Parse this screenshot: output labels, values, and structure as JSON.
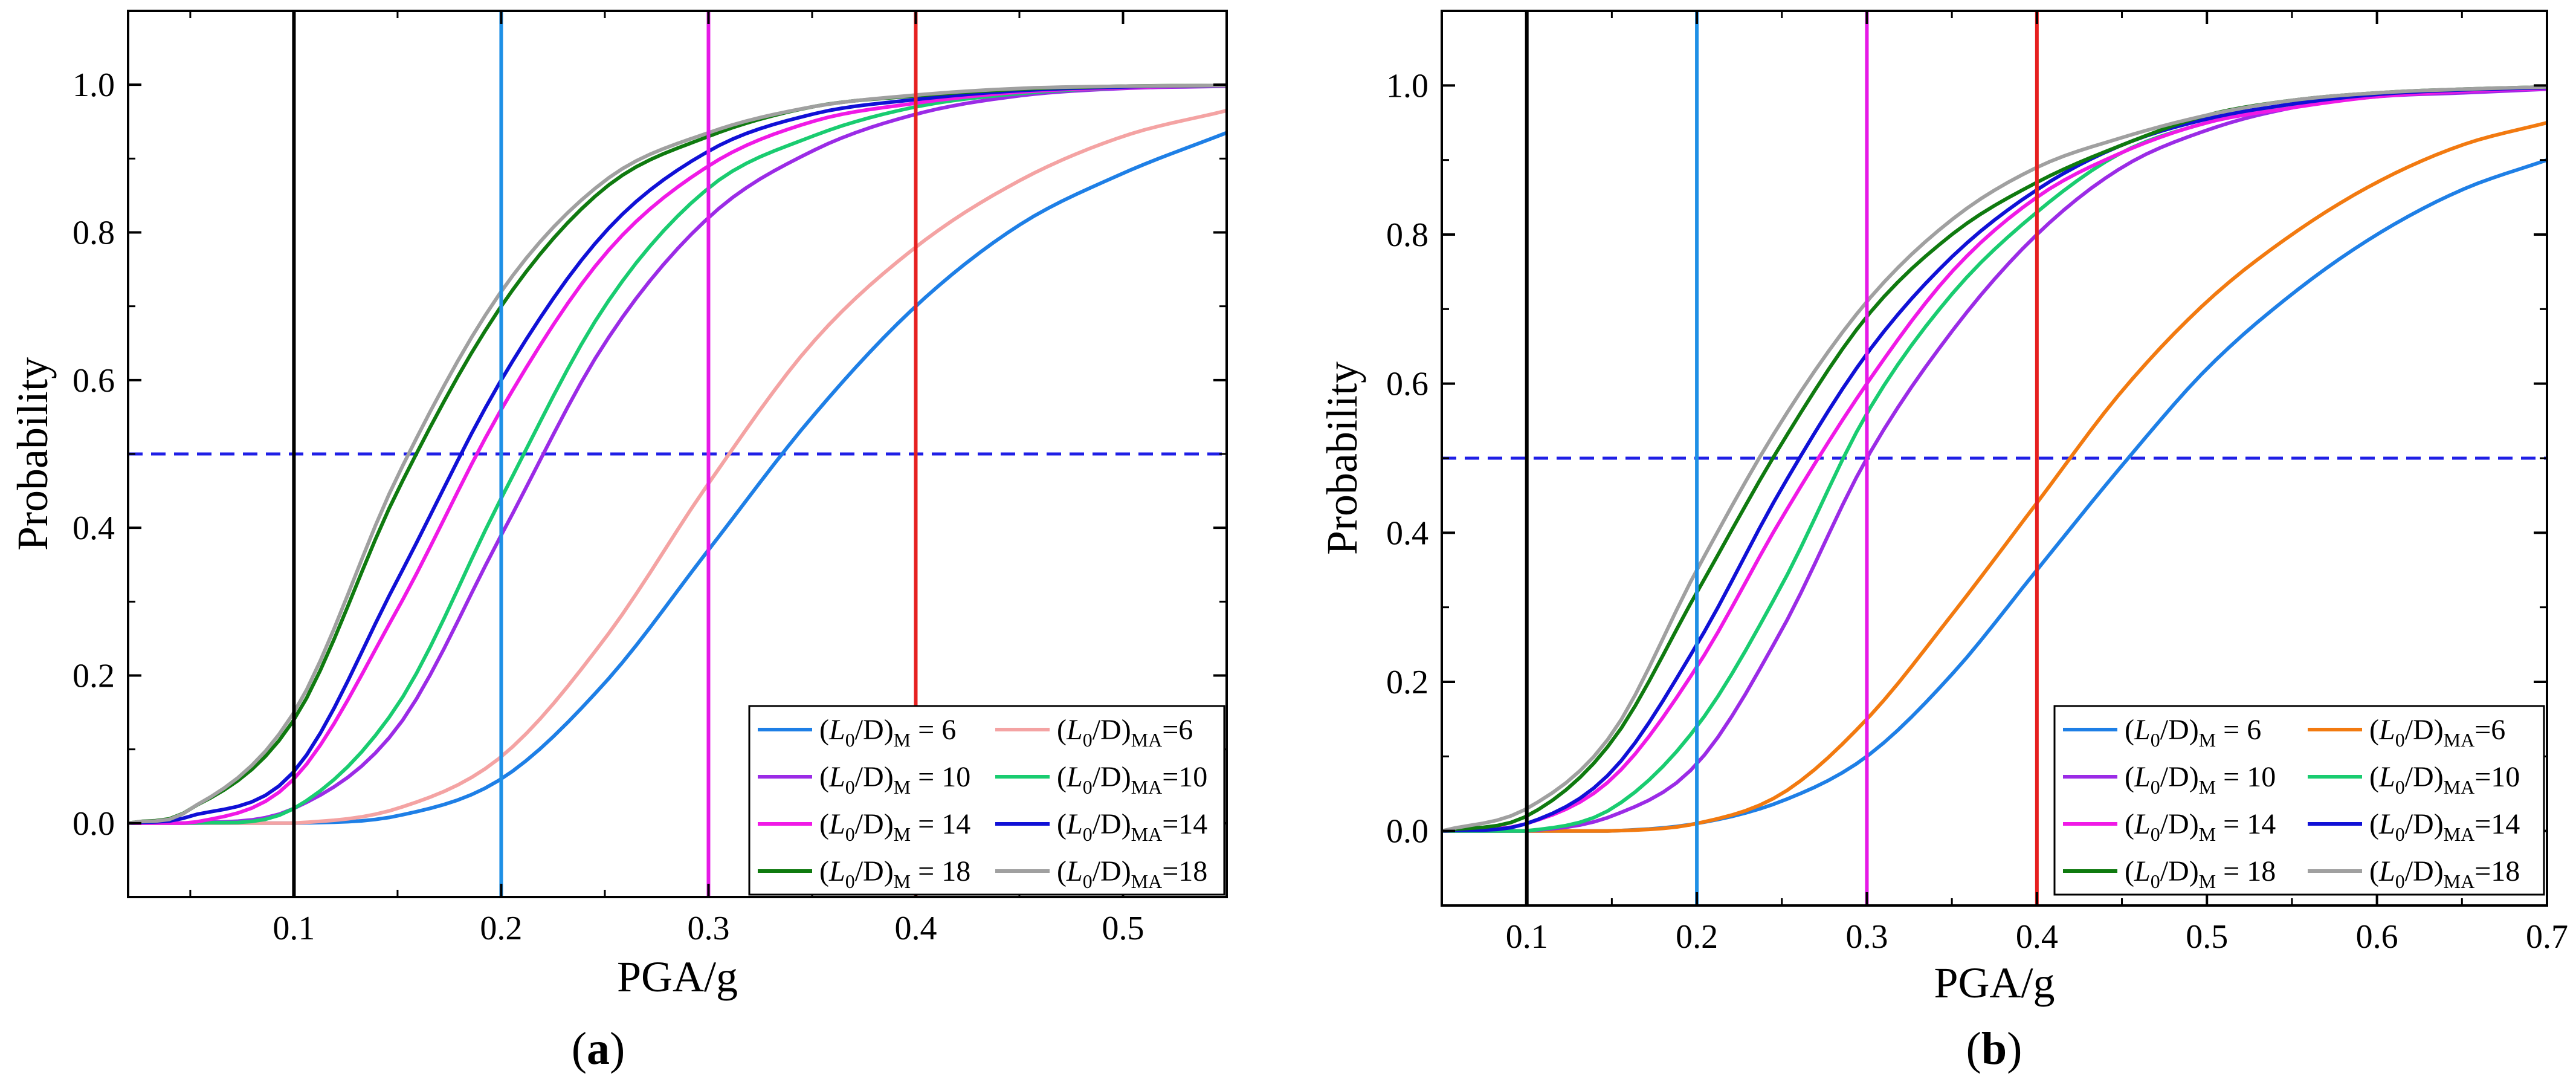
{
  "chart_data": [
    {
      "type": "line",
      "panel_label": "a",
      "xlabel": "PGA/g",
      "ylabel": "Probability",
      "xlim": [
        0.02,
        0.55
      ],
      "ylim": [
        -0.1,
        1.1
      ],
      "xticks": [
        0.1,
        0.2,
        0.3,
        0.4,
        0.5
      ],
      "xtick_labels": [
        "0.1",
        "0.2",
        "0.3",
        "0.4",
        "0.5"
      ],
      "yticks": [
        0.0,
        0.2,
        0.4,
        0.6,
        0.8,
        1.0
      ],
      "ytick_labels": [
        "0.0",
        "0.2",
        "0.4",
        "0.6",
        "0.8",
        "1.0"
      ],
      "grid": false,
      "legend_position": "bottom-right",
      "reference_lines": {
        "horizontal": [
          {
            "y": 0.5,
            "color": "#1f1fe6",
            "style": "dashed"
          }
        ],
        "vertical": [
          {
            "x": 0.1,
            "color": "#000000"
          },
          {
            "x": 0.2,
            "color": "#1e90e6"
          },
          {
            "x": 0.3,
            "color": "#e619e6"
          },
          {
            "x": 0.4,
            "color": "#e62020"
          }
        ]
      },
      "series": [
        {
          "name": "(L0/D)M = 6",
          "ratio": "6",
          "kind": "M",
          "color": "#1e7fe6",
          "x": [
            0.02,
            0.05,
            0.1,
            0.15,
            0.2,
            0.25,
            0.3,
            0.35,
            0.4,
            0.45,
            0.5,
            0.55
          ],
          "values": [
            0.0,
            0.0,
            0.0,
            0.01,
            0.06,
            0.19,
            0.37,
            0.55,
            0.7,
            0.81,
            0.88,
            0.935
          ]
        },
        {
          "name": "(L0/D)MA=6",
          "ratio": "6",
          "kind": "MA",
          "color": "#f4a3a3",
          "x": [
            0.02,
            0.05,
            0.1,
            0.15,
            0.2,
            0.25,
            0.3,
            0.35,
            0.4,
            0.45,
            0.5,
            0.55
          ],
          "values": [
            0.0,
            0.0,
            0.0,
            0.02,
            0.09,
            0.25,
            0.46,
            0.65,
            0.78,
            0.87,
            0.93,
            0.965
          ]
        },
        {
          "name": "(L0/D)M = 10",
          "ratio": "10",
          "kind": "M",
          "color": "#9b2be6",
          "x": [
            0.02,
            0.05,
            0.1,
            0.15,
            0.2,
            0.25,
            0.3,
            0.35,
            0.4,
            0.45,
            0.5,
            0.55
          ],
          "values": [
            0.0,
            0.0,
            0.02,
            0.13,
            0.39,
            0.65,
            0.82,
            0.91,
            0.96,
            0.985,
            0.995,
            0.998
          ]
        },
        {
          "name": "(L0/D)MA=10",
          "ratio": "10",
          "kind": "MA",
          "color": "#19cc70",
          "x": [
            0.02,
            0.05,
            0.1,
            0.15,
            0.2,
            0.25,
            0.3,
            0.35,
            0.4,
            0.45,
            0.5,
            0.55
          ],
          "values": [
            0.0,
            0.0,
            0.02,
            0.16,
            0.44,
            0.7,
            0.86,
            0.93,
            0.97,
            0.988,
            0.996,
            0.999
          ]
        },
        {
          "name": "(L0/D)M = 14",
          "ratio": "14",
          "kind": "M",
          "color": "#f019e6",
          "x": [
            0.02,
            0.05,
            0.1,
            0.15,
            0.2,
            0.25,
            0.3,
            0.35,
            0.4,
            0.45,
            0.5,
            0.55
          ],
          "values": [
            0.0,
            0.0,
            0.06,
            0.29,
            0.56,
            0.77,
            0.89,
            0.95,
            0.975,
            0.99,
            0.996,
            0.999
          ]
        },
        {
          "name": "(L0/D)MA=14",
          "ratio": "14",
          "kind": "MA",
          "color": "#1010d6",
          "x": [
            0.02,
            0.05,
            0.1,
            0.15,
            0.2,
            0.25,
            0.3,
            0.35,
            0.4,
            0.45,
            0.5,
            0.55
          ],
          "values": [
            0.0,
            0.01,
            0.07,
            0.33,
            0.6,
            0.8,
            0.91,
            0.96,
            0.98,
            0.992,
            0.997,
            0.999
          ]
        },
        {
          "name": "(L0/D)M = 18",
          "ratio": "18",
          "kind": "M",
          "color": "#0f7a0f",
          "x": [
            0.02,
            0.05,
            0.1,
            0.15,
            0.2,
            0.25,
            0.3,
            0.35,
            0.4,
            0.45,
            0.5,
            0.55
          ],
          "values": [
            0.0,
            0.02,
            0.14,
            0.45,
            0.7,
            0.86,
            0.93,
            0.97,
            0.985,
            0.994,
            0.998,
            0.999
          ]
        },
        {
          "name": "(L0/D)MA=18",
          "ratio": "18",
          "kind": "MA",
          "color": "#a0a0a0",
          "x": [
            0.02,
            0.05,
            0.1,
            0.15,
            0.2,
            0.25,
            0.3,
            0.35,
            0.4,
            0.45,
            0.5,
            0.55
          ],
          "values": [
            0.0,
            0.02,
            0.15,
            0.47,
            0.72,
            0.87,
            0.935,
            0.97,
            0.986,
            0.995,
            0.998,
            0.999
          ]
        }
      ]
    },
    {
      "type": "line",
      "panel_label": "b",
      "xlabel": "PGA/g",
      "ylabel": "Probability",
      "xlim": [
        0.05,
        0.7
      ],
      "ylim": [
        -0.1,
        1.1
      ],
      "xticks": [
        0.1,
        0.2,
        0.3,
        0.4,
        0.5,
        0.6,
        0.7
      ],
      "xtick_labels": [
        "0.1",
        "0.2",
        "0.3",
        "0.4",
        "0.5",
        "0.6",
        "0.7"
      ],
      "yticks": [
        0.0,
        0.2,
        0.4,
        0.6,
        0.8,
        1.0
      ],
      "ytick_labels": [
        "0.0",
        "0.2",
        "0.4",
        "0.6",
        "0.8",
        "1.0"
      ],
      "grid": false,
      "legend_position": "bottom-right",
      "reference_lines": {
        "horizontal": [
          {
            "y": 0.5,
            "color": "#1f1fe6",
            "style": "dashed"
          }
        ],
        "vertical": [
          {
            "x": 0.1,
            "color": "#000000"
          },
          {
            "x": 0.2,
            "color": "#1e90e6"
          },
          {
            "x": 0.3,
            "color": "#e619e6"
          },
          {
            "x": 0.4,
            "color": "#e62020"
          }
        ]
      },
      "series": [
        {
          "name": "(L0/D)M = 6",
          "ratio": "6",
          "kind": "M",
          "color": "#1e7fe6",
          "x": [
            0.05,
            0.1,
            0.15,
            0.2,
            0.25,
            0.3,
            0.35,
            0.4,
            0.45,
            0.5,
            0.55,
            0.6,
            0.65,
            0.7
          ],
          "values": [
            0.0,
            0.0,
            0.0,
            0.01,
            0.04,
            0.1,
            0.21,
            0.35,
            0.49,
            0.62,
            0.72,
            0.8,
            0.86,
            0.9
          ]
        },
        {
          "name": "(L0/D)MA=6",
          "ratio": "6",
          "kind": "MA",
          "color": "#f27a10",
          "x": [
            0.05,
            0.1,
            0.15,
            0.2,
            0.25,
            0.3,
            0.35,
            0.4,
            0.45,
            0.5,
            0.55,
            0.6,
            0.65,
            0.7
          ],
          "values": [
            0.0,
            0.0,
            0.0,
            0.01,
            0.05,
            0.15,
            0.29,
            0.44,
            0.59,
            0.71,
            0.8,
            0.87,
            0.92,
            0.95
          ]
        },
        {
          "name": "(L0/D)M = 10",
          "ratio": "10",
          "kind": "M",
          "color": "#9b2be6",
          "x": [
            0.05,
            0.1,
            0.15,
            0.2,
            0.25,
            0.3,
            0.35,
            0.4,
            0.45,
            0.5,
            0.55,
            0.6,
            0.65,
            0.7
          ],
          "values": [
            0.0,
            0.0,
            0.02,
            0.09,
            0.27,
            0.5,
            0.67,
            0.8,
            0.89,
            0.94,
            0.97,
            0.985,
            0.99,
            0.995
          ]
        },
        {
          "name": "(L0/D)MA=10",
          "ratio": "10",
          "kind": "MA",
          "color": "#19cc70",
          "x": [
            0.05,
            0.1,
            0.15,
            0.2,
            0.25,
            0.3,
            0.35,
            0.4,
            0.45,
            0.5,
            0.55,
            0.6,
            0.65,
            0.7
          ],
          "values": [
            0.0,
            0.0,
            0.03,
            0.14,
            0.33,
            0.56,
            0.72,
            0.83,
            0.91,
            0.95,
            0.975,
            0.988,
            0.994,
            0.997
          ]
        },
        {
          "name": "(L0/D)M = 14",
          "ratio": "14",
          "kind": "M",
          "color": "#f019e6",
          "x": [
            0.05,
            0.1,
            0.15,
            0.2,
            0.25,
            0.3,
            0.35,
            0.4,
            0.45,
            0.5,
            0.55,
            0.6,
            0.65,
            0.7
          ],
          "values": [
            0.0,
            0.01,
            0.07,
            0.22,
            0.42,
            0.6,
            0.75,
            0.85,
            0.91,
            0.95,
            0.97,
            0.985,
            0.992,
            0.996
          ]
        },
        {
          "name": "(L0/D)MA=14",
          "ratio": "14",
          "kind": "MA",
          "color": "#1010d6",
          "x": [
            0.05,
            0.1,
            0.15,
            0.2,
            0.25,
            0.3,
            0.35,
            0.4,
            0.45,
            0.5,
            0.55,
            0.6,
            0.65,
            0.7
          ],
          "values": [
            0.0,
            0.01,
            0.08,
            0.25,
            0.46,
            0.64,
            0.77,
            0.86,
            0.92,
            0.955,
            0.975,
            0.988,
            0.994,
            0.997
          ]
        },
        {
          "name": "(L0/D)M = 18",
          "ratio": "18",
          "kind": "M",
          "color": "#0f7a0f",
          "x": [
            0.05,
            0.1,
            0.15,
            0.2,
            0.25,
            0.3,
            0.35,
            0.4,
            0.45,
            0.5,
            0.55,
            0.6,
            0.65,
            0.7
          ],
          "values": [
            0.0,
            0.02,
            0.12,
            0.32,
            0.52,
            0.69,
            0.8,
            0.87,
            0.92,
            0.96,
            0.98,
            0.99,
            0.995,
            0.998
          ]
        },
        {
          "name": "(L0/D)MA=18",
          "ratio": "18",
          "kind": "MA",
          "color": "#a0a0a0",
          "x": [
            0.05,
            0.1,
            0.15,
            0.2,
            0.25,
            0.3,
            0.35,
            0.4,
            0.45,
            0.5,
            0.55,
            0.6,
            0.65,
            0.7
          ],
          "values": [
            0.0,
            0.03,
            0.13,
            0.35,
            0.55,
            0.71,
            0.82,
            0.89,
            0.93,
            0.96,
            0.98,
            0.99,
            0.995,
            0.998
          ]
        }
      ]
    }
  ]
}
